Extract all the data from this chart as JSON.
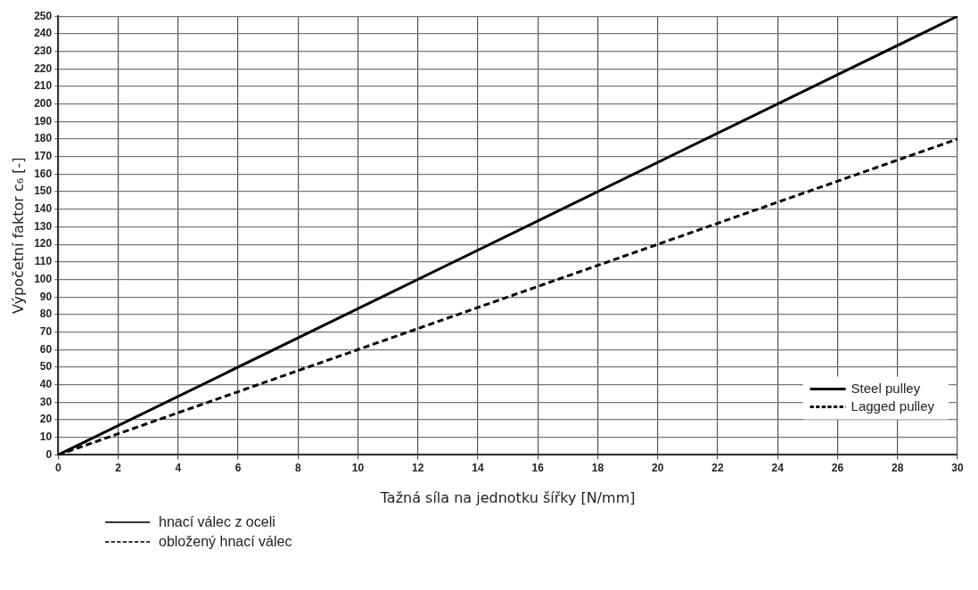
{
  "chart_data": {
    "type": "line",
    "xlabel": "Tažná síla na jednotku šířky [N/mm]",
    "ylabel": "Výpočetní faktor c₆ [-]",
    "x": [
      0,
      30
    ],
    "series": [
      {
        "name": "Steel pulley",
        "color": "#000000",
        "values": [
          0,
          250
        ],
        "line_style": "solid"
      },
      {
        "name": "Lagged pulley",
        "color": "#000000",
        "values": [
          0,
          180
        ],
        "line_style": "dashed"
      }
    ],
    "xlim": [
      0,
      30
    ],
    "xticks": [
      0,
      2,
      4,
      6,
      8,
      10,
      12,
      14,
      16,
      18,
      20,
      22,
      24,
      26,
      28,
      30
    ],
    "ylim": [
      0,
      250
    ],
    "yticks": [
      0,
      10,
      20,
      30,
      40,
      50,
      60,
      70,
      80,
      90,
      100,
      110,
      120,
      130,
      140,
      150,
      160,
      170,
      180,
      190,
      200,
      210,
      220,
      230,
      240,
      250
    ],
    "grid": true,
    "legend": "bottom right",
    "marker": "none",
    "annotations": [
      "hnací válec z oceli",
      "obložený hnací válec"
    ]
  }
}
